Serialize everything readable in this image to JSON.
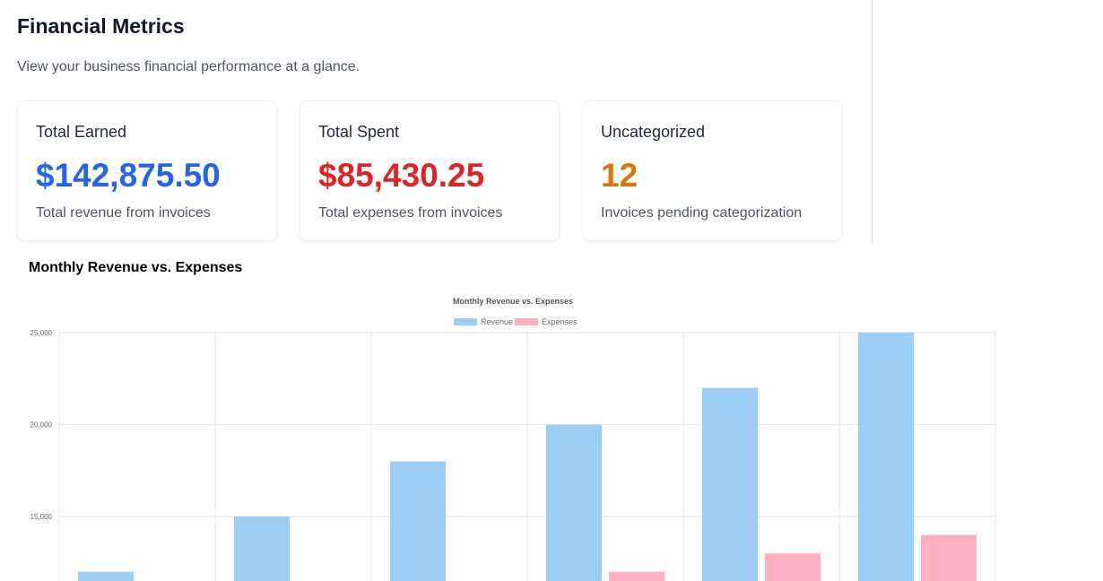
{
  "header": {
    "title": "Financial Metrics",
    "subtitle": "View your business financial performance at a glance."
  },
  "cards": [
    {
      "label": "Total Earned",
      "value": "$142,875.50",
      "description": "Total revenue from invoices",
      "color": "#2563eb"
    },
    {
      "label": "Total Spent",
      "value": "$85,430.25",
      "description": "Total expenses from invoices",
      "color": "#dc2626"
    },
    {
      "label": "Uncategorized",
      "value": "12",
      "description": "Invoices pending categorization",
      "color": "#d97706"
    }
  ],
  "chart_section": {
    "heading": "Monthly Revenue vs. Expenses"
  },
  "chart_data": {
    "type": "bar",
    "title": "Monthly Revenue vs. Expenses",
    "categories": [
      "",
      "",
      "",
      "",
      "",
      ""
    ],
    "series": [
      {
        "name": "Revenue",
        "values": [
          12000,
          15000,
          18000,
          20000,
          22000,
          25000
        ],
        "color": "#9ccff3"
      },
      {
        "name": "Expenses",
        "values": [
          null,
          null,
          null,
          12000,
          13000,
          14000
        ],
        "color": "#ffb0c1"
      }
    ],
    "y_ticks": [
      "15,000",
      "20,000",
      "25,000"
    ],
    "y_tick_values": [
      15000,
      20000,
      25000
    ],
    "ylim": [
      11500,
      25000
    ],
    "grid": true,
    "legend": "top-center"
  }
}
